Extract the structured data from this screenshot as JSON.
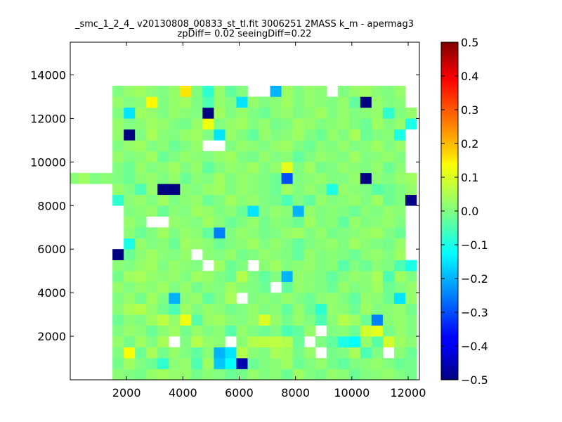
{
  "chart_data": {
    "type": "heatmap",
    "title": "_smc_1_2_4_ v20130808_00833_st_tl.fit 3006251 2MASS k_m - apermag3",
    "subtitle": "zpDiff= 0.02 seeingDiff=0.22",
    "xlabel": "",
    "ylabel": "",
    "xlim": [
      0,
      12400
    ],
    "ylim": [
      0,
      15500
    ],
    "x_ticks": [
      "2000",
      "4000",
      "6000",
      "8000",
      "10000",
      "12000"
    ],
    "y_ticks": [
      "2000",
      "4000",
      "6000",
      "8000",
      "10000",
      "12000",
      "14000"
    ],
    "colorbar": {
      "colormap": "jet",
      "vmin": -0.5,
      "vmax": 0.5,
      "ticks": [
        "0.5",
        "0.4",
        "0.3",
        "0.2",
        "0.1",
        "0.0",
        "−0.1",
        "−0.2",
        "−0.3",
        "−0.4",
        "−0.5"
      ]
    },
    "grid": false,
    "x_bin_start": -100,
    "x_bin_width": 400,
    "y_bin_width": 500,
    "row_order": "bottom-to-top",
    "cells": [
      [
        null,
        null,
        null,
        null,
        0.01,
        0.0,
        -0.01,
        0.02,
        0.03,
        0.02,
        0.02,
        -0.01,
        0.01,
        0.0,
        -0.02,
        -0.01,
        0.02,
        0.0,
        0.01,
        -0.02,
        0.03,
        0.0,
        -0.01,
        0.02,
        0.01,
        -0.02,
        0.0,
        0.01,
        0.02,
        0.0,
        -0.01,
        null
      ],
      [
        null,
        null,
        null,
        null,
        -0.01,
        0.03,
        0.0,
        -0.02,
        -0.08,
        0.01,
        0.02,
        -0.05,
        0.03,
        -0.18,
        -0.12,
        -0.45,
        -0.02,
        0.0,
        0.01,
        0.03,
        -0.02,
        0.0,
        0.02,
        -0.01,
        -0.03,
        0.0,
        0.01,
        0.02,
        0.0,
        -0.02,
        -0.01,
        null
      ],
      [
        null,
        null,
        null,
        null,
        0.0,
        0.12,
        -0.02,
        0.04,
        -0.01,
        0.02,
        0.0,
        -0.03,
        0.01,
        -0.2,
        -0.15,
        0.05,
        0.01,
        0.0,
        0.04,
        0.03,
        -0.01,
        0.02,
        null,
        -0.01,
        0.0,
        0.04,
        -0.05,
        0.0,
        null,
        0.01,
        -0.02,
        null
      ],
      [
        null,
        null,
        null,
        null,
        0.02,
        -0.01,
        0.03,
        0.0,
        0.04,
        null,
        0.0,
        0.05,
        0.02,
        0.01,
        null,
        0.01,
        0.05,
        0.06,
        0.06,
        0.05,
        -0.02,
        null,
        0.0,
        -0.03,
        -0.1,
        -0.12,
        0.02,
        -0.04,
        0.08,
        0.03,
        0.01,
        null
      ],
      [
        null,
        null,
        null,
        null,
        0.0,
        0.02,
        0.01,
        -0.02,
        0.01,
        0.03,
        -0.01,
        0.02,
        0.0,
        0.01,
        -0.04,
        0.02,
        0.0,
        -0.02,
        0.0,
        -0.05,
        -0.03,
        0.02,
        null,
        0.0,
        0.01,
        -0.02,
        0.08,
        0.1,
        -0.01,
        0.02,
        0.0,
        null
      ],
      [
        null,
        null,
        null,
        null,
        -0.02,
        0.01,
        0.0,
        0.03,
        0.06,
        0.02,
        0.11,
        -0.04,
        0.02,
        0.03,
        0.01,
        0.0,
        0.02,
        0.09,
        0.02,
        -0.01,
        0.02,
        0.0,
        -0.05,
        0.01,
        0.05,
        0.03,
        -0.02,
        -0.25,
        0.01,
        0.02,
        0.0,
        null
      ],
      [
        null,
        null,
        null,
        null,
        0.01,
        0.04,
        0.05,
        0.02,
        -0.01,
        -0.05,
        0.03,
        0.0,
        0.02,
        0.01,
        -0.01,
        0.0,
        0.02,
        0.0,
        0.01,
        -0.03,
        0.02,
        -0.02,
        -0.08,
        0.02,
        0.01,
        -0.02,
        0.03,
        0.0,
        0.01,
        0.02,
        -0.01,
        null
      ],
      [
        null,
        null,
        null,
        null,
        0.0,
        0.02,
        -0.01,
        0.03,
        0.0,
        -0.2,
        0.01,
        0.02,
        -0.03,
        0.0,
        0.04,
        null,
        0.0,
        0.01,
        0.0,
        0.02,
        0.0,
        -0.02,
        0.01,
        0.02,
        0.0,
        -0.03,
        0.02,
        0.01,
        -0.02,
        -0.15,
        0.02,
        null
      ],
      [
        null,
        null,
        null,
        null,
        0.02,
        0.0,
        0.02,
        0.01,
        0.03,
        0.0,
        0.02,
        -0.01,
        0.01,
        0.0,
        0.03,
        0.01,
        0.0,
        -0.02,
        null,
        -0.03,
        0.02,
        0.01,
        0.0,
        -0.02,
        0.02,
        0.0,
        0.01,
        0.03,
        -0.02,
        0.0,
        0.02,
        null
      ],
      [
        null,
        null,
        null,
        null,
        -0.01,
        0.03,
        0.04,
        0.02,
        0.01,
        0.02,
        0.0,
        0.03,
        0.02,
        0.0,
        -0.02,
        0.05,
        0.0,
        -0.03,
        0.0,
        -0.2,
        0.02,
        0.01,
        0.0,
        -0.03,
        0.0,
        0.02,
        0.01,
        0.04,
        -0.05,
        0.03,
        0.0,
        null
      ],
      [
        null,
        null,
        null,
        null,
        0.01,
        0.0,
        0.02,
        0.03,
        0.0,
        0.02,
        0.01,
        0.0,
        null,
        0.03,
        -0.02,
        0.0,
        null,
        0.01,
        0.03,
        0.0,
        0.01,
        0.02,
        0.0,
        0.01,
        -0.04,
        0.0,
        -0.02,
        0.01,
        0.0,
        -0.05,
        -0.1,
        null
      ],
      [
        null,
        null,
        null,
        null,
        -0.5,
        -0.02,
        0.01,
        0.03,
        0.01,
        0.0,
        0.02,
        null,
        0.01,
        0.0,
        0.02,
        -0.01,
        0.0,
        0.02,
        0.01,
        0.0,
        -0.03,
        0.02,
        0.0,
        0.01,
        0.0,
        -0.02,
        0.01,
        0.02,
        0.0,
        0.03,
        null,
        null
      ],
      [
        null,
        null,
        null,
        null,
        null,
        -0.1,
        0.02,
        0.0,
        0.01,
        -0.02,
        0.03,
        0.02,
        0.01,
        -0.02,
        0.0,
        0.01,
        0.03,
        0.0,
        0.02,
        0.0,
        -0.03,
        0.0,
        0.01,
        0.02,
        0.0,
        0.03,
        0.01,
        0.0,
        -0.01,
        0.02,
        null,
        null
      ],
      [
        null,
        null,
        null,
        null,
        null,
        0.01,
        -0.02,
        0.0,
        0.03,
        0.0,
        0.02,
        0.01,
        -0.03,
        -0.25,
        0.0,
        0.02,
        0.01,
        -0.01,
        0.0,
        0.02,
        0.03,
        0.0,
        0.02,
        -0.01,
        0.0,
        0.01,
        0.02,
        0.03,
        0.0,
        -0.02,
        null,
        null
      ],
      [
        null,
        null,
        null,
        null,
        null,
        0.02,
        0.0,
        null,
        null,
        0.02,
        0.01,
        0.0,
        0.03,
        0.01,
        -0.02,
        0.0,
        0.02,
        -0.01,
        0.01,
        0.0,
        -0.02,
        0.03,
        0.0,
        0.01,
        -0.03,
        0.02,
        0.0,
        0.01,
        0.02,
        0.0,
        null,
        null
      ],
      [
        null,
        null,
        null,
        null,
        null,
        0.0,
        0.01,
        0.02,
        -0.02,
        0.01,
        0.0,
        0.03,
        0.02,
        0.0,
        0.01,
        -0.02,
        -0.15,
        0.0,
        0.02,
        0.01,
        -0.2,
        0.02,
        0.0,
        0.01,
        0.0,
        -0.02,
        0.01,
        0.0,
        0.02,
        0.01,
        null,
        null
      ],
      [
        null,
        null,
        null,
        null,
        -0.08,
        0.01,
        0.02,
        0.0,
        0.03,
        0.0,
        0.01,
        0.02,
        -0.02,
        0.0,
        0.03,
        0.01,
        0.02,
        0.0,
        -0.01,
        -0.05,
        0.0,
        -0.03,
        0.02,
        0.0,
        0.01,
        0.02,
        0.0,
        0.03,
        -0.02,
        0.0,
        -0.5,
        null
      ],
      [
        null,
        null,
        null,
        null,
        0.02,
        0.0,
        -0.05,
        0.02,
        -0.5,
        -0.5,
        0.01,
        0.0,
        0.02,
        0.03,
        0.0,
        0.02,
        0.01,
        0.0,
        -0.02,
        0.03,
        0.0,
        0.02,
        0.0,
        -0.1,
        0.02,
        0.01,
        0.0,
        -0.04,
        -0.02,
        0.0,
        0.02,
        null
      ],
      [
        0.01,
        0.03,
        0.0,
        0.01,
        0.0,
        -0.02,
        0.01,
        0.02,
        0.0,
        0.02,
        -0.02,
        0.01,
        0.0,
        0.03,
        0.0,
        0.02,
        0.01,
        0.0,
        -0.02,
        -0.3,
        0.0,
        0.01,
        0.02,
        0.0,
        0.0,
        0.02,
        -0.5,
        0.01,
        0.0,
        0.02,
        0.03,
        null
      ],
      [
        null,
        null,
        null,
        null,
        0.0,
        -0.02,
        0.02,
        0.0,
        0.01,
        0.03,
        0.0,
        0.02,
        -0.03,
        0.0,
        0.02,
        0.01,
        0.03,
        0.0,
        0.02,
        0.1,
        0.0,
        0.03,
        -0.01,
        0.0,
        0.02,
        0.01,
        0.0,
        0.02,
        -0.02,
        0.01,
        null,
        null
      ],
      [
        null,
        null,
        null,
        null,
        0.02,
        0.0,
        0.01,
        0.03,
        -0.02,
        0.0,
        0.02,
        0.01,
        0.0,
        0.02,
        0.03,
        0.0,
        -0.01,
        0.02,
        0.0,
        0.01,
        -0.03,
        0.0,
        0.02,
        0.01,
        0.0,
        0.03,
        0.0,
        0.01,
        0.02,
        0.0,
        null,
        null
      ],
      [
        null,
        null,
        null,
        null,
        0.0,
        0.02,
        0.03,
        0.0,
        0.01,
        -0.02,
        0.0,
        0.02,
        null,
        null,
        0.0,
        0.02,
        0.01,
        0.0,
        0.02,
        0.03,
        0.0,
        -0.02,
        0.01,
        0.0,
        0.02,
        0.0,
        0.01,
        0.03,
        0.0,
        0.02,
        null,
        null
      ],
      [
        null,
        null,
        null,
        null,
        0.02,
        -0.5,
        0.0,
        0.04,
        0.01,
        0.0,
        0.02,
        0.03,
        0.0,
        -0.15,
        0.02,
        0.0,
        -0.03,
        0.02,
        0.0,
        0.01,
        0.03,
        0.0,
        -0.02,
        0.02,
        0.0,
        0.04,
        -0.02,
        0.0,
        0.01,
        -0.1,
        null,
        null
      ],
      [
        null,
        null,
        null,
        null,
        0.02,
        0.0,
        0.01,
        0.03,
        0.02,
        0.0,
        -0.01,
        0.02,
        0.11,
        0.0,
        0.02,
        0.03,
        0.0,
        0.02,
        -0.01,
        0.0,
        0.03,
        0.02,
        0.0,
        0.01,
        0.02,
        0.0,
        -0.02,
        0.03,
        0.0,
        0.02,
        -0.1,
        null
      ],
      [
        null,
        null,
        null,
        null,
        0.0,
        -0.15,
        0.03,
        0.02,
        0.0,
        0.02,
        0.01,
        0.0,
        -0.5,
        0.03,
        0.0,
        0.02,
        0.0,
        -0.02,
        0.01,
        0.02,
        0.0,
        0.01,
        0.03,
        0.0,
        0.02,
        0.0,
        0.01,
        0.02,
        -0.08,
        0.0,
        0.02,
        null
      ],
      [
        null,
        null,
        null,
        null,
        0.02,
        0.0,
        0.01,
        0.13,
        0.0,
        0.02,
        0.03,
        0.0,
        -0.05,
        0.02,
        0.0,
        -0.15,
        0.02,
        0.0,
        0.01,
        0.03,
        0.0,
        0.02,
        0.01,
        0.0,
        0.02,
        -0.03,
        -0.5,
        0.02,
        0.0,
        0.01,
        null,
        null
      ],
      [
        null,
        null,
        null,
        null,
        0.0,
        0.02,
        0.03,
        0.01,
        0.0,
        0.02,
        0.15,
        0.0,
        -0.08,
        0.02,
        -0.03,
        0.0,
        null,
        null,
        -0.2,
        0.03,
        0.0,
        0.02,
        0.01,
        null,
        0.0,
        0.02,
        0.03,
        0.01,
        0.0,
        0.02,
        null,
        null
      ]
    ]
  }
}
